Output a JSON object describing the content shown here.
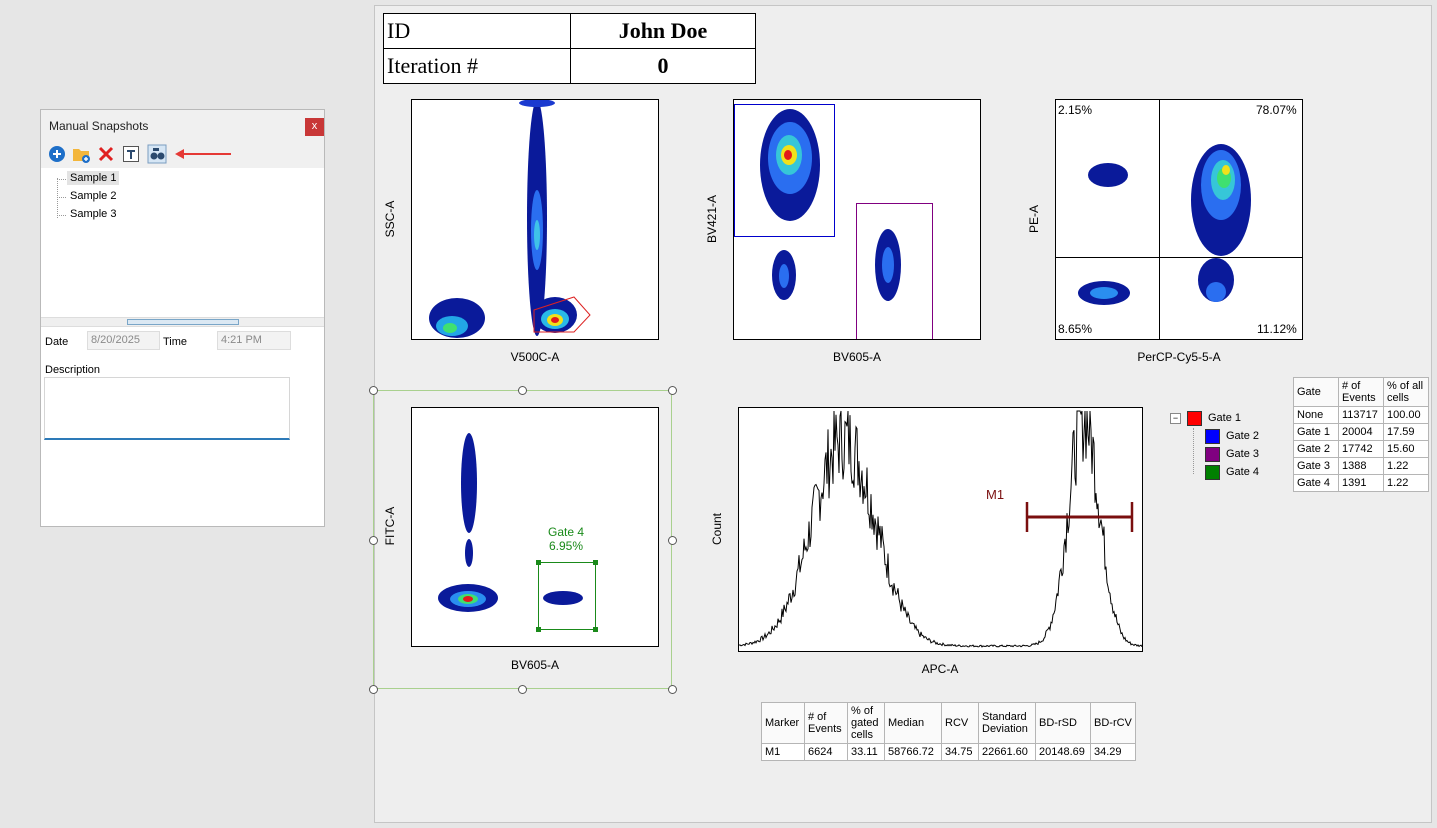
{
  "snapshots": {
    "title": "Manual Snapshots",
    "close": "x",
    "toolbar": [
      "add-icon",
      "add-folder-icon",
      "delete-icon",
      "rename-icon",
      "snapshot-icon"
    ],
    "items": [
      "Sample 1",
      "Sample 2",
      "Sample 3"
    ],
    "selected": "Sample 1",
    "date_label": "Date",
    "date_value": "8/20/2025",
    "time_label": "Time",
    "time_value": "4:21 PM",
    "description_label": "Description"
  },
  "header_table": {
    "id_label": "ID",
    "id_value": "John Doe",
    "iteration_label": "Iteration #",
    "iteration_value": "0"
  },
  "plots": {
    "p1": {
      "xlabel": "V500C-A",
      "ylabel": "SSC-A"
    },
    "p2": {
      "xlabel": "BV605-A",
      "ylabel": "BV421-A"
    },
    "p3": {
      "xlabel": "PerCP-Cy5-5-A",
      "ylabel": "PE-A",
      "q_ul": "2.15%",
      "q_ur": "78.07%",
      "q_ll": "8.65%",
      "q_lr": "11.12%"
    },
    "p4": {
      "xlabel": "BV605-A",
      "ylabel": "FITC-A",
      "gate_name": "Gate 4",
      "gate_pct": "6.95%"
    },
    "p5": {
      "xlabel": "APC-A",
      "ylabel": "Count",
      "marker": "M1"
    }
  },
  "gate_legend": [
    {
      "label": "Gate 1",
      "color": "#ff0000"
    },
    {
      "label": "Gate 2",
      "color": "#0000ff"
    },
    {
      "label": "Gate 3",
      "color": "#800080"
    },
    {
      "label": "Gate 4",
      "color": "#008000"
    }
  ],
  "gate_stats": {
    "headers": [
      "Gate",
      "# of Events",
      "% of all cells"
    ],
    "rows": [
      [
        "None",
        "113717",
        "100.00"
      ],
      [
        "Gate 1",
        "20004",
        "17.59"
      ],
      [
        "Gate 2",
        "17742",
        "15.60"
      ],
      [
        "Gate 3",
        "1388",
        "1.22"
      ],
      [
        "Gate 4",
        "1391",
        "1.22"
      ]
    ]
  },
  "marker_stats": {
    "headers": [
      "Marker",
      "# of Events",
      "% of gated cells",
      "Median",
      "RCV",
      "Standard Deviation",
      "BD-rSD",
      "BD-rCV"
    ],
    "rows": [
      [
        "M1",
        "6624",
        "33.11",
        "58766.72",
        "34.75",
        "22661.60",
        "20148.69",
        "34.29"
      ]
    ]
  }
}
